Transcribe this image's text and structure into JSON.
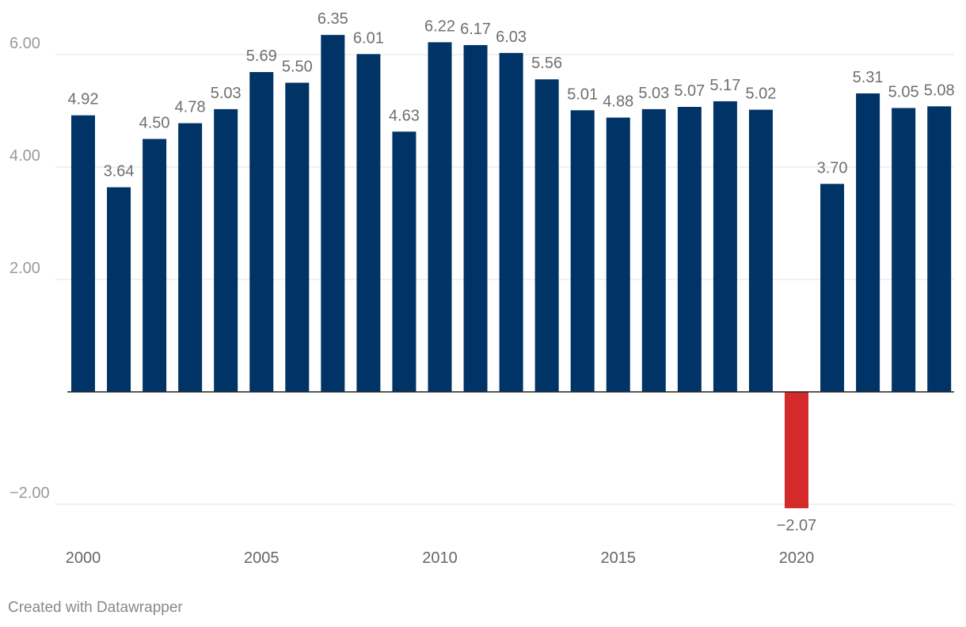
{
  "chart_data": {
    "type": "bar",
    "title": "",
    "xlabel": "",
    "ylabel": "",
    "x": [
      2000,
      2001,
      2002,
      2003,
      2004,
      2005,
      2006,
      2007,
      2008,
      2009,
      2010,
      2011,
      2012,
      2013,
      2014,
      2015,
      2016,
      2017,
      2018,
      2019,
      2020,
      2021,
      2022,
      2023,
      2024
    ],
    "values": [
      4.92,
      3.64,
      4.5,
      4.78,
      5.03,
      5.69,
      5.5,
      6.35,
      6.01,
      4.63,
      6.22,
      6.17,
      6.03,
      5.56,
      5.01,
      4.88,
      5.03,
      5.07,
      5.17,
      5.02,
      -2.07,
      3.7,
      5.31,
      5.05,
      5.08
    ],
    "value_labels": [
      "4.92",
      "3.64",
      "4.50",
      "4.78",
      "5.03",
      "5.69",
      "5.50",
      "6.35",
      "6.01",
      "4.63",
      "6.22",
      "6.17",
      "6.03",
      "5.56",
      "5.01",
      "4.88",
      "5.03",
      "5.07",
      "5.17",
      "5.02",
      "−2.07",
      "3.70",
      "5.31",
      "5.05",
      "5.08"
    ],
    "ylim": [
      -2.07,
      6.35
    ],
    "y_ticks": [
      -2.0,
      2.0,
      4.0,
      6.0
    ],
    "y_tick_labels": [
      "−2.00",
      "2.00",
      "4.00",
      "6.00"
    ],
    "x_ticks": [
      2000,
      2005,
      2010,
      2015,
      2020
    ],
    "x_tick_labels": [
      "2000",
      "2005",
      "2010",
      "2015",
      "2020"
    ],
    "grid": true,
    "colors": {
      "positive": "#003366",
      "negative": "#d42a2a",
      "baseline": "#222222",
      "gridline": "#e3e3e3"
    }
  },
  "footer": {
    "credit": "Created with Datawrapper"
  }
}
